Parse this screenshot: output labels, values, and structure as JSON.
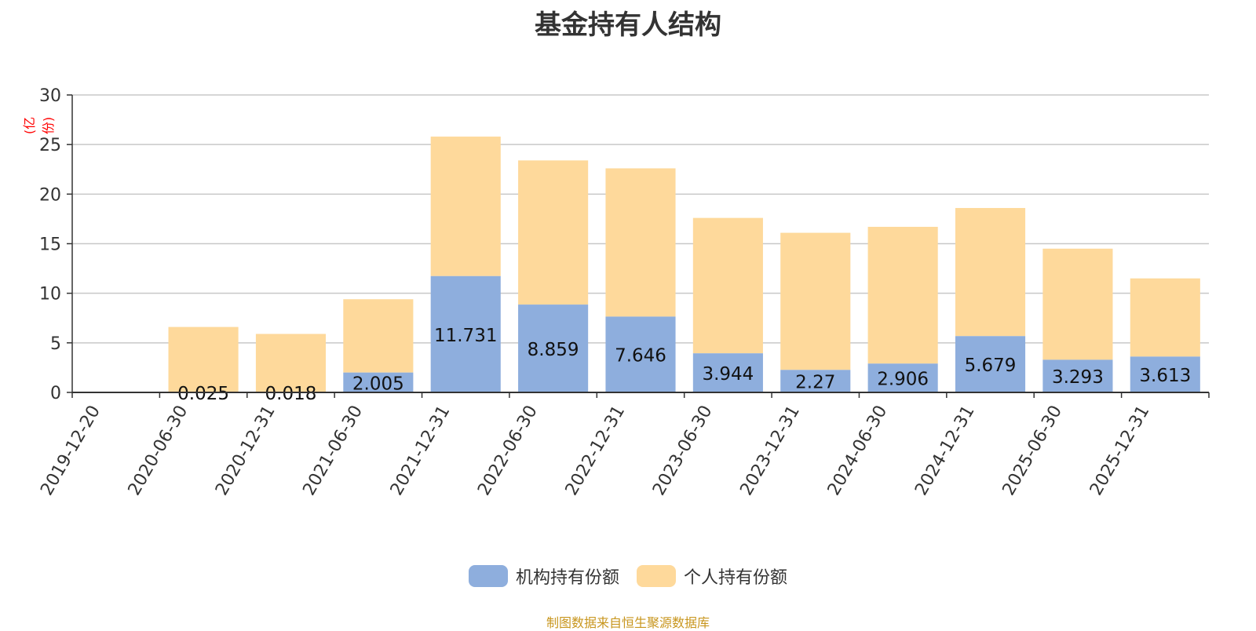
{
  "chart_data": {
    "type": "bar",
    "stacked": true,
    "title": "基金持有人结构",
    "ylabel": "(亿份)",
    "ylim": [
      0,
      30
    ],
    "yticks": [
      0,
      5,
      10,
      15,
      20,
      25,
      30
    ],
    "categories": [
      "2019-12-20",
      "2020-06-30",
      "2020-12-31",
      "2021-06-30",
      "2021-12-31",
      "2022-06-30",
      "2022-12-31",
      "2023-06-30",
      "2023-12-31",
      "2024-06-30",
      "2024-12-31",
      "2025-06-30",
      "2025-12-31"
    ],
    "series": [
      {
        "name": "机构持有份额",
        "color": "#8eaedd",
        "values": [
          0,
          0.025,
          0.018,
          2.005,
          11.731,
          8.859,
          7.646,
          3.944,
          2.27,
          2.906,
          5.679,
          3.293,
          3.613
        ],
        "labels": [
          "",
          "0.025",
          "0.018",
          "2.005",
          "11.731",
          "8.859",
          "7.646",
          "3.944",
          "2.27",
          "2.906",
          "5.679",
          "3.293",
          "3.613"
        ]
      },
      {
        "name": "个人持有份额",
        "color": "#fed99b",
        "values": [
          0,
          6.575,
          5.882,
          7.395,
          14.069,
          14.541,
          14.954,
          13.656,
          13.83,
          13.794,
          12.921,
          11.207,
          7.887
        ]
      }
    ],
    "legend_position": "bottom-center"
  },
  "source_note": "制图数据来自恒生聚源数据库"
}
